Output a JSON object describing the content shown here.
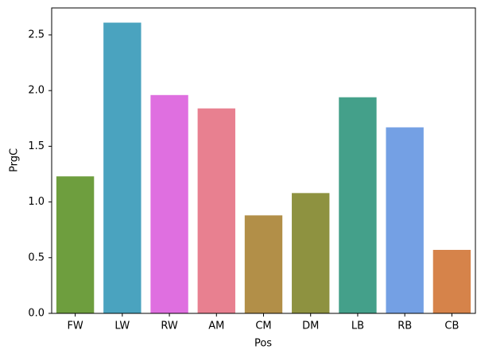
{
  "chart_data": {
    "type": "bar",
    "x_label": "Pos",
    "y_label": "PrgC",
    "categories": [
      "FW",
      "LW",
      "RW",
      "AM",
      "CM",
      "DM",
      "LB",
      "RB",
      "CB"
    ],
    "values": [
      1.23,
      2.61,
      1.96,
      1.84,
      0.88,
      1.08,
      1.94,
      1.67,
      0.57
    ],
    "colors": [
      "#6e9e3e",
      "#4aa3bf",
      "#df6fe0",
      "#e88090",
      "#b28f48",
      "#8e9240",
      "#44a08a",
      "#74a0e4",
      "#d6834a"
    ],
    "ylim": [
      0,
      2.742
    ],
    "yticks": [
      {
        "value": 0,
        "label": "0.0"
      },
      0.5,
      {
        "value": 1,
        "label": "1.0"
      },
      1.5,
      {
        "value": 2,
        "label": "2.0"
      },
      2.5
    ],
    "grid": false
  }
}
